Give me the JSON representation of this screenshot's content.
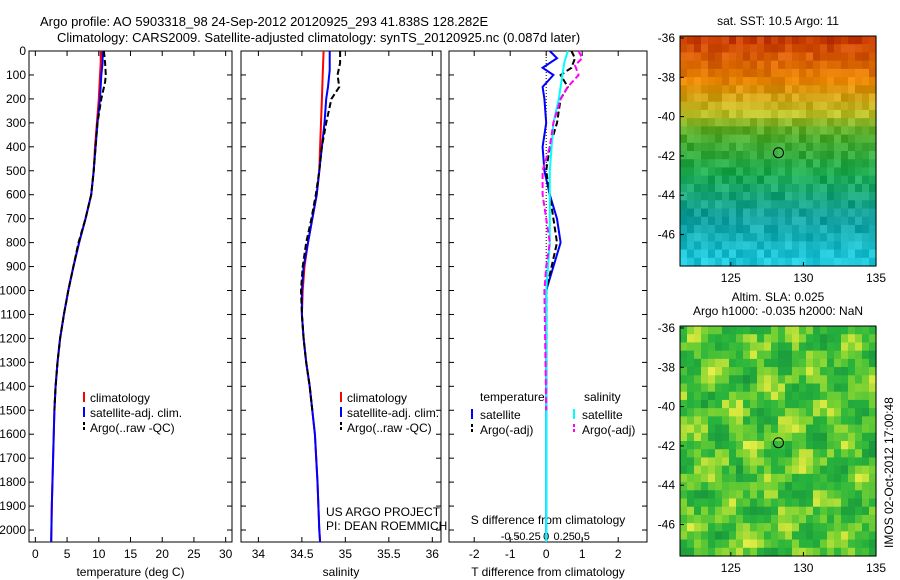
{
  "header": {
    "line1": "Argo profile: AO 5903318_98 24-Sep-2012 20120925_293 41.838S 128.282E",
    "line2": "Climatology: CARS2009. Satellite-adjusted climatology: synTS_20120925.nc (0.087d later)"
  },
  "colors": {
    "climatology": "#ff0000",
    "satellite": "#0000ff",
    "argo": "#000000",
    "sal_satellite": "#00ffff",
    "sal_argo": "#ff00ff"
  },
  "chart_data": [
    {
      "type": "line",
      "id": "temperature",
      "xlabel": "temperature (deg C)",
      "xlim": [
        -1,
        31
      ],
      "ylim": [
        0,
        2050
      ],
      "xticks": [
        0,
        5,
        10,
        15,
        20,
        25,
        30
      ],
      "yticks": [
        0,
        100,
        200,
        300,
        400,
        500,
        600,
        700,
        800,
        900,
        1000,
        1100,
        1200,
        1300,
        1400,
        1500,
        1600,
        1700,
        1800,
        1900,
        2000
      ],
      "legend": [
        "climatology",
        "satellite-adj. clim.",
        "Argo(..raw -QC)"
      ],
      "series": [
        {
          "name": "climatology",
          "points": [
            [
              10.3,
              0
            ],
            [
              10.3,
              50
            ],
            [
              10.2,
              100
            ],
            [
              10.0,
              200
            ],
            [
              9.7,
              300
            ],
            [
              9.4,
              400
            ],
            [
              9.2,
              500
            ],
            [
              8.8,
              600
            ],
            [
              7.9,
              700
            ],
            [
              6.9,
              800
            ],
            [
              6.0,
              900
            ],
            [
              5.2,
              1000
            ],
            [
              4.5,
              1100
            ],
            [
              3.9,
              1200
            ],
            [
              3.5,
              1300
            ],
            [
              3.2,
              1400
            ],
            [
              3.0,
              1500
            ],
            [
              2.8,
              1700
            ],
            [
              2.6,
              1900
            ],
            [
              2.5,
              2050
            ]
          ]
        },
        {
          "name": "satellite-adj. clim.",
          "points": [
            [
              10.6,
              0
            ],
            [
              10.6,
              50
            ],
            [
              10.4,
              100
            ],
            [
              10.2,
              200
            ],
            [
              9.8,
              300
            ],
            [
              9.5,
              400
            ],
            [
              9.2,
              500
            ],
            [
              8.8,
              600
            ],
            [
              7.9,
              700
            ],
            [
              6.9,
              800
            ],
            [
              6.0,
              900
            ],
            [
              5.2,
              1000
            ],
            [
              4.5,
              1100
            ],
            [
              3.9,
              1200
            ],
            [
              3.5,
              1300
            ],
            [
              3.2,
              1400
            ],
            [
              3.0,
              1500
            ],
            [
              2.8,
              1700
            ],
            [
              2.6,
              1900
            ],
            [
              2.5,
              2050
            ]
          ]
        },
        {
          "name": "Argo(..raw -QC)",
          "points": [
            [
              10.8,
              0
            ],
            [
              11.0,
              50
            ],
            [
              11.1,
              100
            ],
            [
              11.0,
              130
            ],
            [
              10.4,
              200
            ],
            [
              9.8,
              300
            ],
            [
              9.5,
              400
            ],
            [
              9.2,
              500
            ],
            [
              8.8,
              600
            ],
            [
              7.9,
              700
            ],
            [
              6.8,
              800
            ],
            [
              6.0,
              900
            ],
            [
              5.2,
              1000
            ],
            [
              4.5,
              1100
            ],
            [
              3.9,
              1200
            ],
            [
              3.5,
              1300
            ],
            [
              3.2,
              1400
            ],
            [
              3.0,
              1500
            ]
          ]
        }
      ]
    },
    {
      "type": "line",
      "id": "salinity",
      "xlabel": "salinity",
      "xlim": [
        33.8,
        36.1
      ],
      "ylim": [
        0,
        2050
      ],
      "xticks": [
        34,
        34.5,
        35,
        35.5,
        36
      ],
      "legend": [
        "climatology",
        "satellite-adj. clim.",
        "Argo(..raw -QC)"
      ],
      "annotation": [
        "US ARGO PROJECT",
        "PI: DEAN ROEMMICH"
      ],
      "series": [
        {
          "name": "climatology",
          "points": [
            [
              34.75,
              0
            ],
            [
              34.74,
              100
            ],
            [
              34.73,
              200
            ],
            [
              34.72,
              300
            ],
            [
              34.71,
              400
            ],
            [
              34.7,
              500
            ],
            [
              34.67,
              600
            ],
            [
              34.62,
              700
            ],
            [
              34.57,
              800
            ],
            [
              34.53,
              900
            ],
            [
              34.51,
              1000
            ],
            [
              34.5,
              1100
            ],
            [
              34.52,
              1200
            ],
            [
              34.55,
              1300
            ],
            [
              34.59,
              1400
            ],
            [
              34.62,
              1500
            ],
            [
              34.65,
              1600
            ],
            [
              34.68,
              1800
            ],
            [
              34.7,
              2000
            ],
            [
              34.71,
              2050
            ]
          ]
        },
        {
          "name": "satellite-adj. clim.",
          "points": [
            [
              34.82,
              0
            ],
            [
              34.82,
              80
            ],
            [
              34.8,
              150
            ],
            [
              34.78,
              200
            ],
            [
              34.76,
              300
            ],
            [
              34.73,
              400
            ],
            [
              34.7,
              500
            ],
            [
              34.67,
              600
            ],
            [
              34.62,
              700
            ],
            [
              34.57,
              800
            ],
            [
              34.52,
              900
            ],
            [
              34.5,
              1000
            ],
            [
              34.5,
              1100
            ],
            [
              34.52,
              1200
            ],
            [
              34.55,
              1300
            ],
            [
              34.59,
              1400
            ],
            [
              34.62,
              1500
            ],
            [
              34.65,
              1600
            ],
            [
              34.68,
              1800
            ],
            [
              34.7,
              2000
            ],
            [
              34.71,
              2050
            ]
          ]
        },
        {
          "name": "Argo(..raw -QC)",
          "points": [
            [
              34.94,
              0
            ],
            [
              34.94,
              50
            ],
            [
              34.91,
              100
            ],
            [
              34.93,
              150
            ],
            [
              34.84,
              200
            ],
            [
              34.78,
              300
            ],
            [
              34.73,
              400
            ],
            [
              34.7,
              500
            ],
            [
              34.66,
              600
            ],
            [
              34.61,
              700
            ],
            [
              34.55,
              800
            ],
            [
              34.51,
              900
            ],
            [
              34.49,
              1000
            ],
            [
              34.5,
              1100
            ],
            [
              34.52,
              1200
            ],
            [
              34.55,
              1300
            ],
            [
              34.59,
              1400
            ],
            [
              34.62,
              1500
            ]
          ]
        }
      ]
    },
    {
      "type": "line",
      "id": "difference",
      "xlabel": "T difference from climatology",
      "xlabel_top": "S difference from climatology",
      "xlim": [
        -2.7,
        2.8
      ],
      "ylim": [
        0,
        2050
      ],
      "xticks": [
        -2,
        -1,
        0,
        1,
        2
      ],
      "xticks_top_pos": [
        -2,
        -1,
        0,
        1,
        2
      ],
      "xticks_top_labels": [
        "-0.5",
        "-0.25",
        "0",
        "0.25",
        "0.5"
      ],
      "legend_titles": [
        "temperature",
        "salinity"
      ],
      "legend": [
        "satellite",
        "Argo(-adj)",
        "satellite",
        "Argo(-adj)"
      ],
      "series": [
        {
          "name": "satellite",
          "points": [
            [
              0.1,
              0
            ],
            [
              0.3,
              30
            ],
            [
              -0.1,
              70
            ],
            [
              0.2,
              100
            ],
            [
              -0.1,
              150
            ],
            [
              -0.05,
              200
            ],
            [
              0.0,
              300
            ],
            [
              -0.1,
              400
            ],
            [
              -0.05,
              500
            ],
            [
              0.1,
              600
            ],
            [
              0.3,
              700
            ],
            [
              0.4,
              800
            ],
            [
              0.2,
              900
            ],
            [
              0.0,
              1000
            ],
            [
              0.0,
              2050
            ]
          ]
        },
        {
          "name": "Argo(-adj)",
          "points": [
            [
              0.7,
              0
            ],
            [
              0.8,
              30
            ],
            [
              0.7,
              70
            ],
            [
              0.4,
              100
            ],
            [
              0.6,
              150
            ],
            [
              0.4,
              200
            ],
            [
              0.3,
              300
            ],
            [
              0.1,
              400
            ],
            [
              0.0,
              500
            ],
            [
              0.1,
              600
            ],
            [
              0.2,
              700
            ],
            [
              0.3,
              800
            ],
            [
              0.15,
              900
            ],
            [
              0.0,
              1000
            ],
            [
              0.0,
              1500
            ]
          ]
        },
        {
          "name": "salinity satellite",
          "points": [
            [
              0.6,
              0
            ],
            [
              0.5,
              50
            ],
            [
              0.45,
              100
            ],
            [
              0.4,
              150
            ],
            [
              0.35,
              200
            ],
            [
              0.2,
              300
            ],
            [
              0.15,
              400
            ],
            [
              0.1,
              500
            ],
            [
              0.1,
              600
            ],
            [
              0.1,
              700
            ],
            [
              0.1,
              800
            ],
            [
              0.05,
              900
            ],
            [
              0.0,
              1000
            ],
            [
              0.0,
              2050
            ]
          ]
        },
        {
          "name": "salinity Argo(-adj)",
          "points": [
            [
              0.9,
              0
            ],
            [
              1.0,
              30
            ],
            [
              0.8,
              60
            ],
            [
              0.9,
              100
            ],
            [
              0.6,
              150
            ],
            [
              0.4,
              200
            ],
            [
              0.2,
              300
            ],
            [
              0.1,
              400
            ],
            [
              -0.1,
              500
            ],
            [
              -0.1,
              600
            ],
            [
              0.0,
              700
            ],
            [
              0.1,
              800
            ],
            [
              0.0,
              900
            ],
            [
              -0.05,
              1000
            ],
            [
              0.0,
              1500
            ]
          ]
        }
      ]
    }
  ],
  "maps": [
    {
      "id": "sst",
      "title_lines": [
        "sat. SST: 10.5 Argo: 11"
      ],
      "xlim": [
        121.5,
        135
      ],
      "ylim": [
        -47.6,
        -35.9
      ],
      "xticks": [
        125,
        130,
        135
      ],
      "yticks": [
        -36,
        -38,
        -40,
        -42,
        -44,
        -46
      ],
      "marker": [
        128.282,
        -41.838
      ]
    },
    {
      "id": "sla",
      "title_lines": [
        "Altim. SLA: 0.025",
        "Argo h1000: -0.035 h2000: NaN"
      ],
      "xlim": [
        121.5,
        135
      ],
      "ylim": [
        -47.6,
        -35.9
      ],
      "xticks": [
        125,
        130,
        135
      ],
      "yticks": [
        -36,
        -38,
        -40,
        -42,
        -44,
        -46
      ],
      "marker": [
        128.282,
        -41.838
      ]
    }
  ],
  "footer": {
    "stamp": "IMOS 02-Oct-2012 17:00:48"
  }
}
